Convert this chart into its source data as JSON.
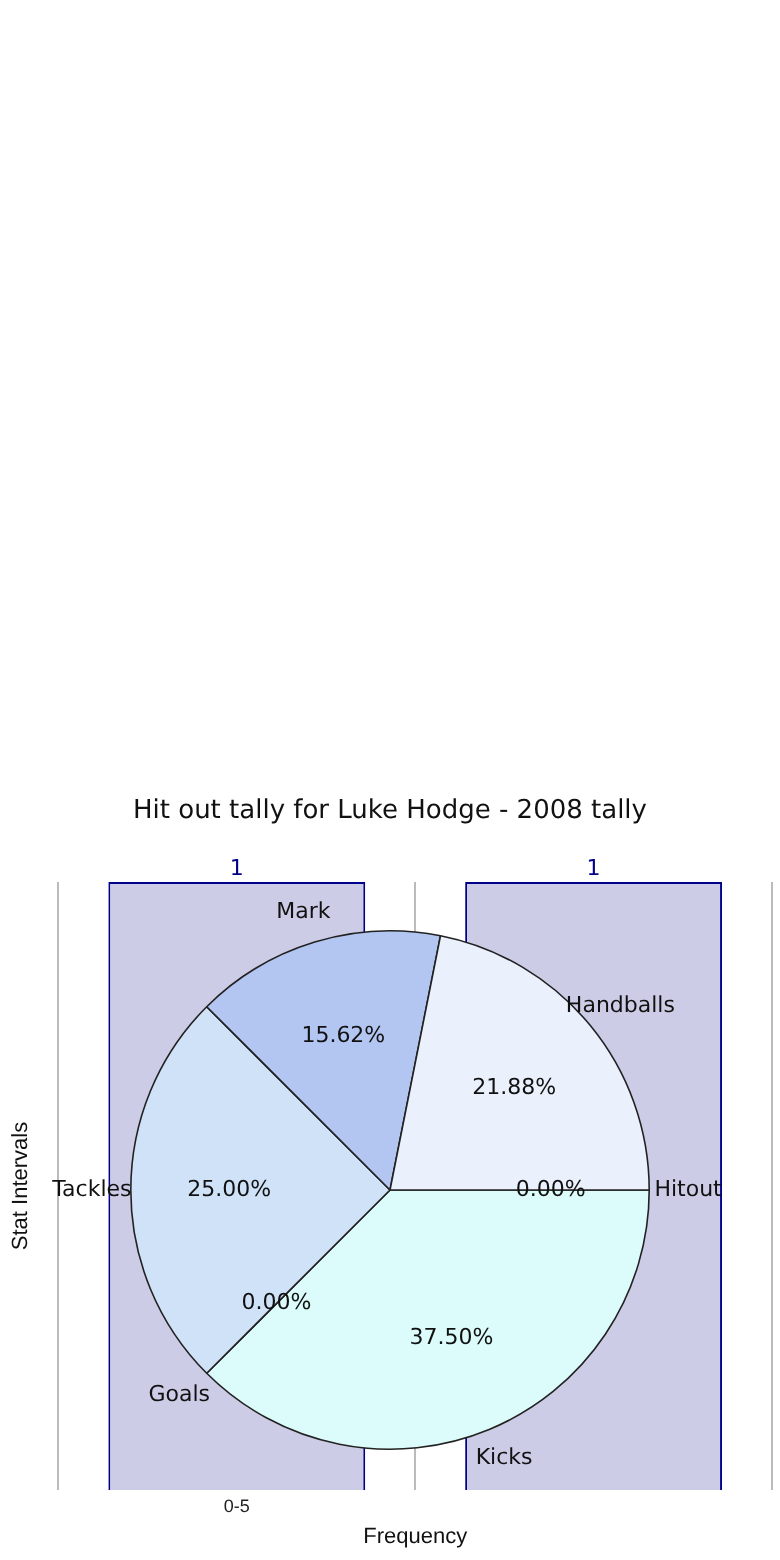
{
  "chart_data": [
    {
      "type": "pie",
      "title": "Hit out tally for Luke Hodge - 2008 tally",
      "categories": [
        "Hitout",
        "Kicks",
        "Goals",
        "Tackles",
        "Mark",
        "Handballs"
      ],
      "values": [
        0,
        37.5,
        0,
        25,
        15.62,
        21.88
      ],
      "colors": [
        "#aaaaaa",
        "#dcfcfc",
        "#888888",
        "#cfe2f8",
        "#b3c6f2",
        "#eaf0fc"
      ],
      "value_labels": [
        "0.00%",
        "37.50%",
        "0.00%",
        "25.00%",
        "15.62%",
        "21.88%"
      ],
      "legend": false
    },
    {
      "type": "bar",
      "xlabel": "Frequency",
      "ylabel": "Stat Intervals",
      "categories": [
        "0-5",
        null
      ],
      "series": [
        {
          "color": "#ccccE6",
          "values": [
            1,
            1
          ]
        }
      ],
      "data_labels": true,
      "grid": "x",
      "tick_labels": "x",
      "legend": false
    }
  ]
}
